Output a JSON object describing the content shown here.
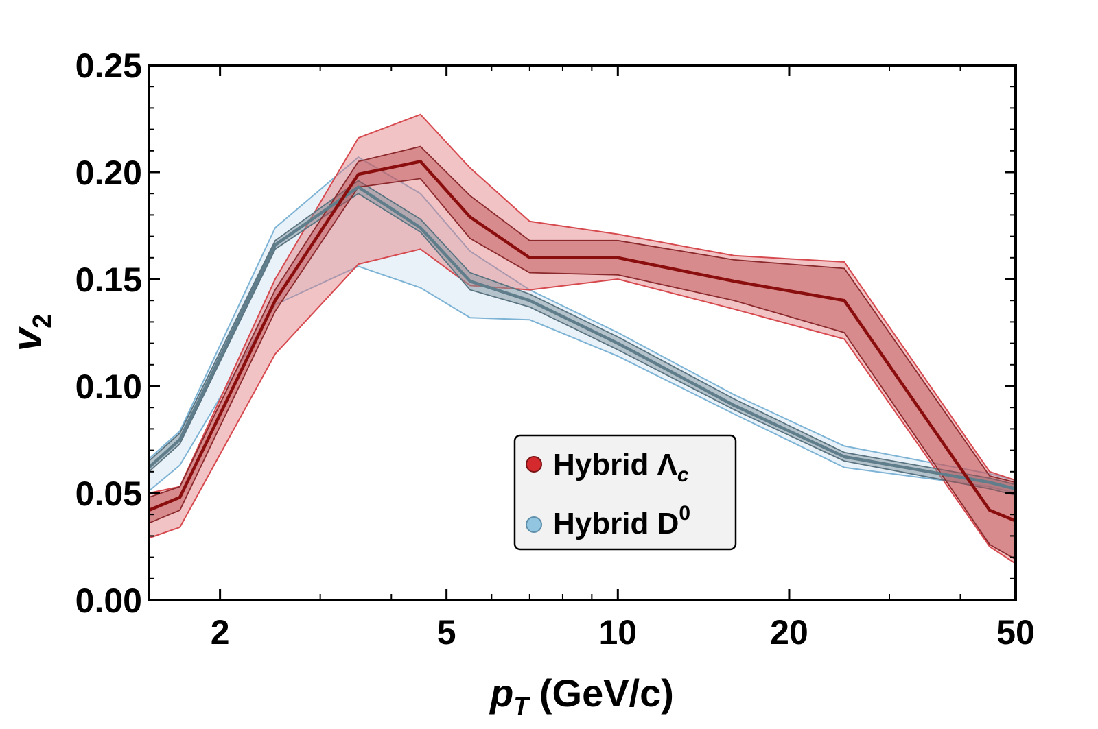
{
  "chart_data": {
    "type": "line",
    "title": "",
    "xlabel_main": "p",
    "xlabel_sub": "T",
    "xlabel_unit": " (GeV/c)",
    "ylabel_main": "v",
    "ylabel_sub": "2",
    "x_scale": "log",
    "xlim": [
      1.5,
      50
    ],
    "ylim": [
      0,
      0.25
    ],
    "x_ticks": [
      {
        "value": 2,
        "label": "2"
      },
      {
        "value": 5,
        "label": "5"
      },
      {
        "value": 10,
        "label": "10"
      },
      {
        "value": 20,
        "label": "20"
      },
      {
        "value": 50,
        "label": "50"
      }
    ],
    "y_ticks": [
      {
        "value": 0,
        "label": "0.00"
      },
      {
        "value": 0.05,
        "label": "0.05"
      },
      {
        "value": 0.1,
        "label": "0.10"
      },
      {
        "value": 0.15,
        "label": "0.15"
      },
      {
        "value": 0.2,
        "label": "0.20"
      },
      {
        "value": 0.25,
        "label": "0.25"
      }
    ],
    "legend_position": "lower-right",
    "series": [
      {
        "name": "Hybrid Λc",
        "legend_main": "Hybrid Λ",
        "legend_sub": "c",
        "color": "#8b0e0e",
        "band_color": "#e37b7e",
        "band_edge": "#d64a4f",
        "x": [
          1.5,
          1.7,
          2.5,
          3.5,
          4.5,
          5.5,
          7,
          10,
          16,
          25,
          45,
          50
        ],
        "y": [
          0.042,
          0.048,
          0.14,
          0.199,
          0.205,
          0.179,
          0.16,
          0.16,
          0.149,
          0.14,
          0.042,
          0.037
        ],
        "inner_low": [
          0.036,
          0.042,
          0.135,
          0.193,
          0.197,
          0.169,
          0.153,
          0.152,
          0.14,
          0.125,
          0.026,
          0.019
        ],
        "inner_high": [
          0.048,
          0.053,
          0.145,
          0.205,
          0.212,
          0.189,
          0.168,
          0.168,
          0.159,
          0.155,
          0.058,
          0.055
        ],
        "outer_low": [
          0.029,
          0.034,
          0.115,
          0.157,
          0.164,
          0.147,
          0.145,
          0.15,
          0.136,
          0.122,
          0.025,
          0.017
        ],
        "outer_high": [
          0.05,
          0.053,
          0.15,
          0.216,
          0.227,
          0.202,
          0.177,
          0.171,
          0.161,
          0.158,
          0.06,
          0.056
        ]
      },
      {
        "name": "Hybrid D0",
        "legend_main": "Hybrid D",
        "legend_sup": "0",
        "color": "#5f7d8a",
        "band_color": "#c9dfee",
        "band_edge": "#7db3d5",
        "x": [
          1.5,
          1.7,
          2.5,
          3.5,
          4.5,
          5.5,
          7,
          10,
          16,
          25,
          45,
          50
        ],
        "y": [
          0.062,
          0.075,
          0.166,
          0.193,
          0.174,
          0.149,
          0.14,
          0.12,
          0.091,
          0.067,
          0.055,
          0.052
        ],
        "inner_low": [
          0.06,
          0.073,
          0.164,
          0.19,
          0.172,
          0.145,
          0.137,
          0.117,
          0.089,
          0.065,
          0.052,
          0.049
        ],
        "inner_high": [
          0.065,
          0.078,
          0.168,
          0.196,
          0.178,
          0.153,
          0.143,
          0.123,
          0.094,
          0.069,
          0.057,
          0.054
        ],
        "outer_low": [
          0.051,
          0.063,
          0.138,
          0.156,
          0.146,
          0.132,
          0.131,
          0.114,
          0.087,
          0.062,
          0.053,
          0.05
        ],
        "outer_high": [
          0.066,
          0.079,
          0.174,
          0.207,
          0.19,
          0.163,
          0.145,
          0.125,
          0.096,
          0.072,
          0.059,
          0.056
        ]
      }
    ]
  }
}
